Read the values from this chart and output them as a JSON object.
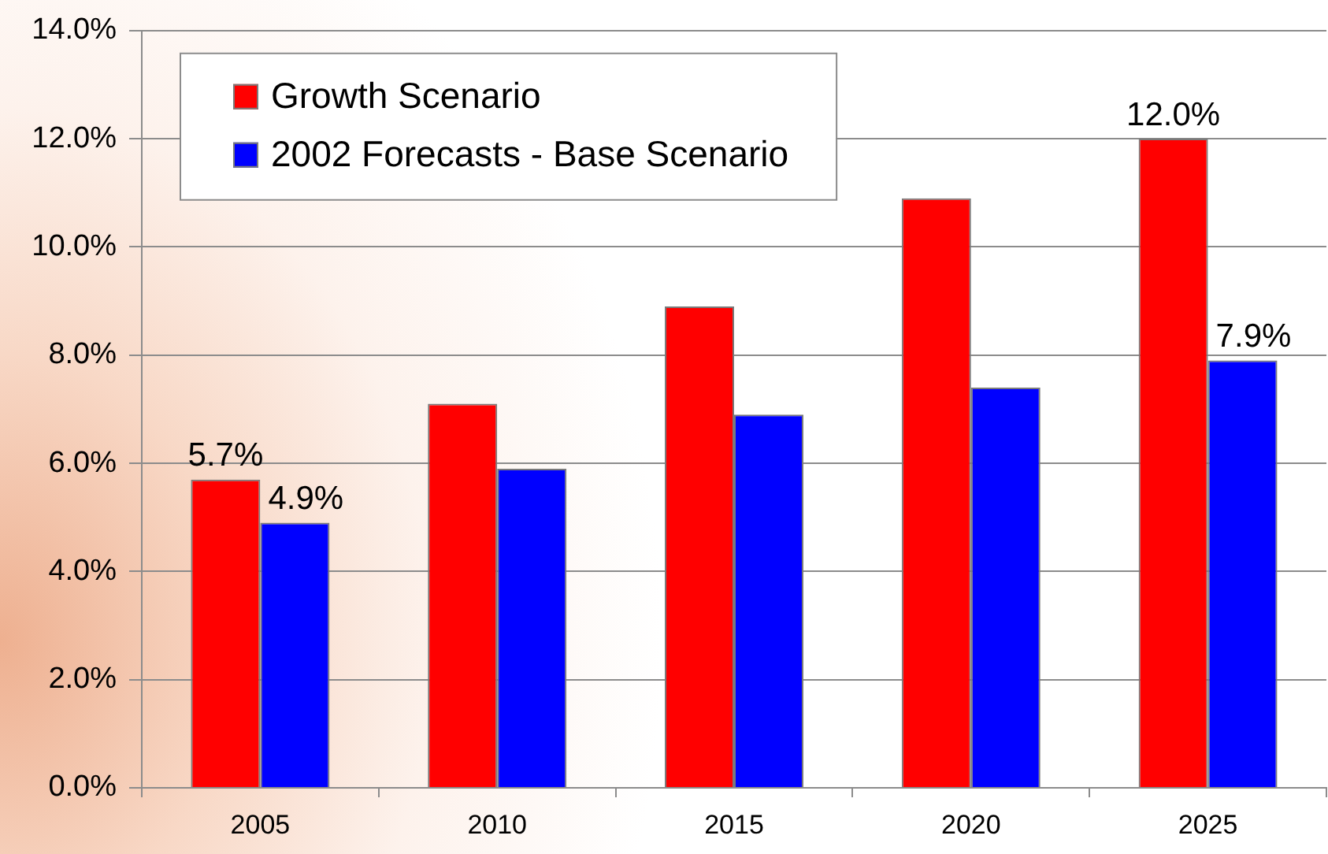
{
  "chart_data": {
    "type": "bar",
    "categories": [
      "2005",
      "2010",
      "2015",
      "2020",
      "2025"
    ],
    "series": [
      {
        "name": "Growth Scenario",
        "color": "#ff0000",
        "values": [
          5.7,
          7.1,
          8.9,
          10.9,
          12.0
        ],
        "value_labels": [
          "5.7%",
          null,
          null,
          null,
          "12.0%"
        ]
      },
      {
        "name": "2002 Forecasts - Base Scenario",
        "color": "#0000ff",
        "values": [
          4.9,
          5.9,
          6.9,
          7.4,
          7.9
        ],
        "value_labels": [
          "4.9%",
          null,
          null,
          null,
          "7.9%"
        ]
      }
    ],
    "ylim": [
      0,
      14
    ],
    "yticks": [
      {
        "value": 0,
        "label": "0.0%"
      },
      {
        "value": 2,
        "label": "2.0%"
      },
      {
        "value": 4,
        "label": "4.0%"
      },
      {
        "value": 6,
        "label": "6.0%"
      },
      {
        "value": 8,
        "label": "8.0%"
      },
      {
        "value": 10,
        "label": "10.0%"
      },
      {
        "value": 12,
        "label": "12.0%"
      },
      {
        "value": 14,
        "label": "14.0%"
      }
    ],
    "grid": "y",
    "legend": "top left"
  }
}
